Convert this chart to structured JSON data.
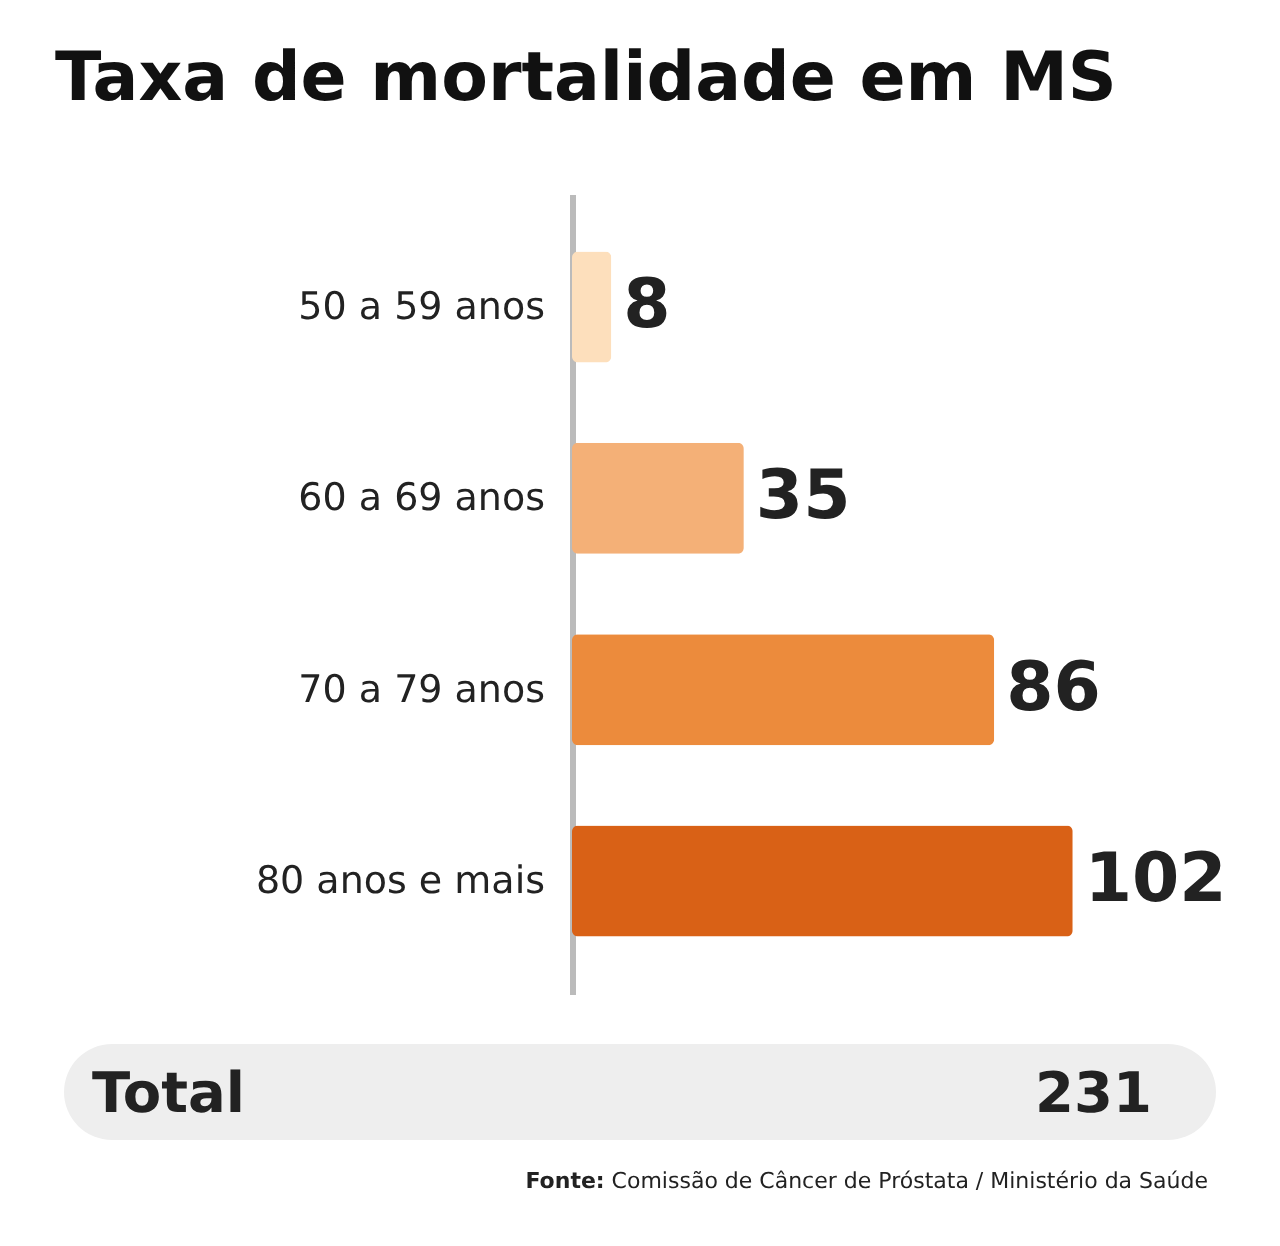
{
  "chart_data": {
    "type": "bar",
    "orientation": "horizontal",
    "title": "Taxa de mortalidade em MS",
    "categories": [
      "50 a 59 anos",
      "60 a 69 anos",
      "70 a 79 anos",
      "80 anos e mais"
    ],
    "values": [
      8,
      35,
      86,
      102
    ],
    "colors": [
      "#fddfbc",
      "#f4b077",
      "#ec8b3c",
      "#d96116"
    ],
    "data_labels": true,
    "annotations": [
      "Total",
      "231",
      "Fonte: Comissão de Câncer de Próstata / Ministério da Saúde"
    ]
  }
}
